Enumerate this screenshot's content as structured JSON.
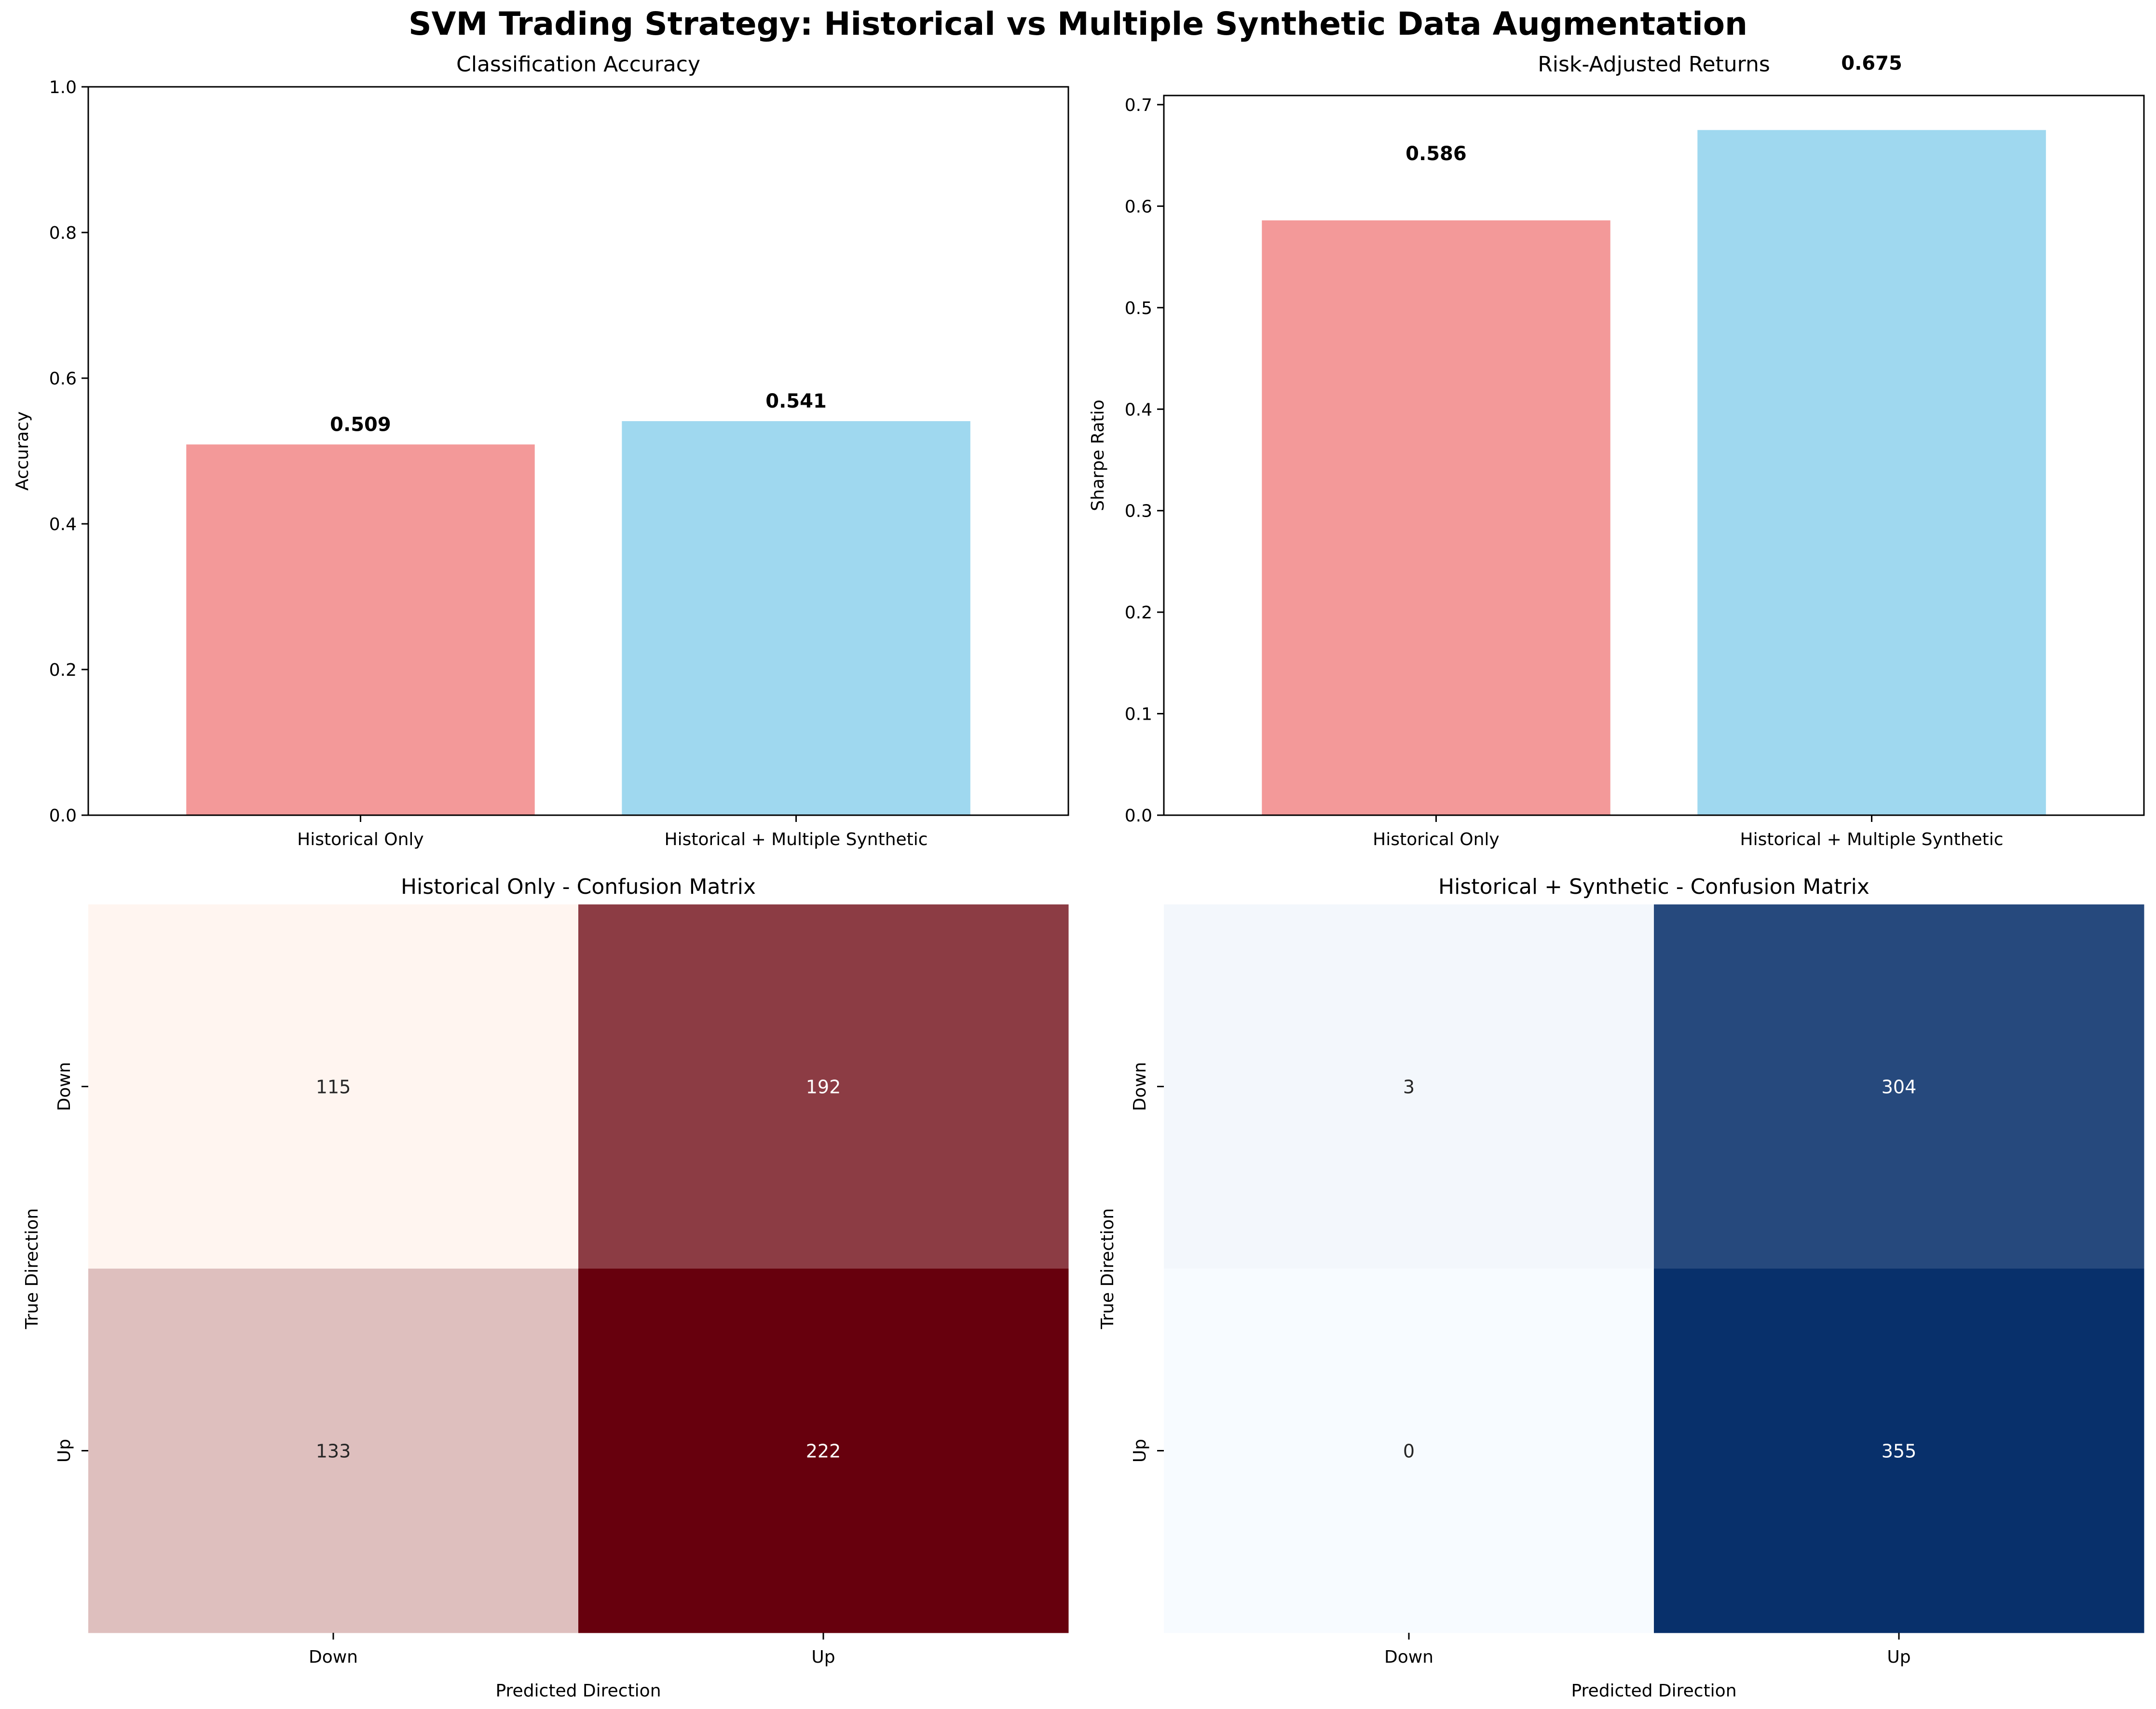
{
  "figure_title": "SVM Trading Strategy: Historical vs Multiple Synthetic Data Augmentation",
  "colors": {
    "historical": "#f08080",
    "synthetic": "#87ceeb",
    "reds_low": "#fff5f0",
    "reds_high": "#67000d",
    "blues_low": "#f7fbff",
    "blues_high": "#08306b"
  },
  "chart_data": [
    {
      "type": "bar",
      "title": "Classification Accuracy",
      "categories": [
        "Historical Only",
        "Historical + Multiple Synthetic"
      ],
      "values": [
        0.509,
        0.541
      ],
      "value_labels": [
        "0.509",
        "0.541"
      ],
      "xlabel": "",
      "ylabel": "Accuracy",
      "ylim": [
        0,
        1.0
      ],
      "yticks": [
        0.0,
        0.2,
        0.4,
        0.6,
        0.8,
        1.0
      ],
      "ytick_labels": [
        "0.0",
        "0.2",
        "0.4",
        "0.6",
        "0.8",
        "1.0"
      ],
      "grid": false
    },
    {
      "type": "bar",
      "title": "Risk-Adjusted Returns",
      "categories": [
        "Historical Only",
        "Historical + Multiple Synthetic"
      ],
      "values": [
        0.586,
        0.675
      ],
      "value_labels": [
        "0.586",
        "0.675"
      ],
      "xlabel": "",
      "ylabel": "Sharpe Ratio",
      "ylim": [
        0,
        0.709
      ],
      "yticks": [
        0.0,
        0.1,
        0.2,
        0.3,
        0.4,
        0.5,
        0.6,
        0.7
      ],
      "ytick_labels": [
        "0.0",
        "0.1",
        "0.2",
        "0.3",
        "0.4",
        "0.5",
        "0.6",
        "0.7"
      ],
      "grid": false
    },
    {
      "type": "heatmap",
      "title": "Historical Only - Confusion Matrix",
      "xlabel": "Predicted Direction",
      "ylabel": "True Direction",
      "x_categories": [
        "Down",
        "Up"
      ],
      "y_categories": [
        "Down",
        "Up"
      ],
      "values": [
        [
          115,
          192
        ],
        [
          133,
          222
        ]
      ],
      "colormap": "Reds",
      "colorbar": false
    },
    {
      "type": "heatmap",
      "title": "Historical + Synthetic - Confusion Matrix",
      "xlabel": "Predicted Direction",
      "ylabel": "True Direction",
      "x_categories": [
        "Down",
        "Up"
      ],
      "y_categories": [
        "Down",
        "Up"
      ],
      "values": [
        [
          3,
          304
        ],
        [
          0,
          355
        ]
      ],
      "colormap": "Blues",
      "colorbar": false
    }
  ]
}
